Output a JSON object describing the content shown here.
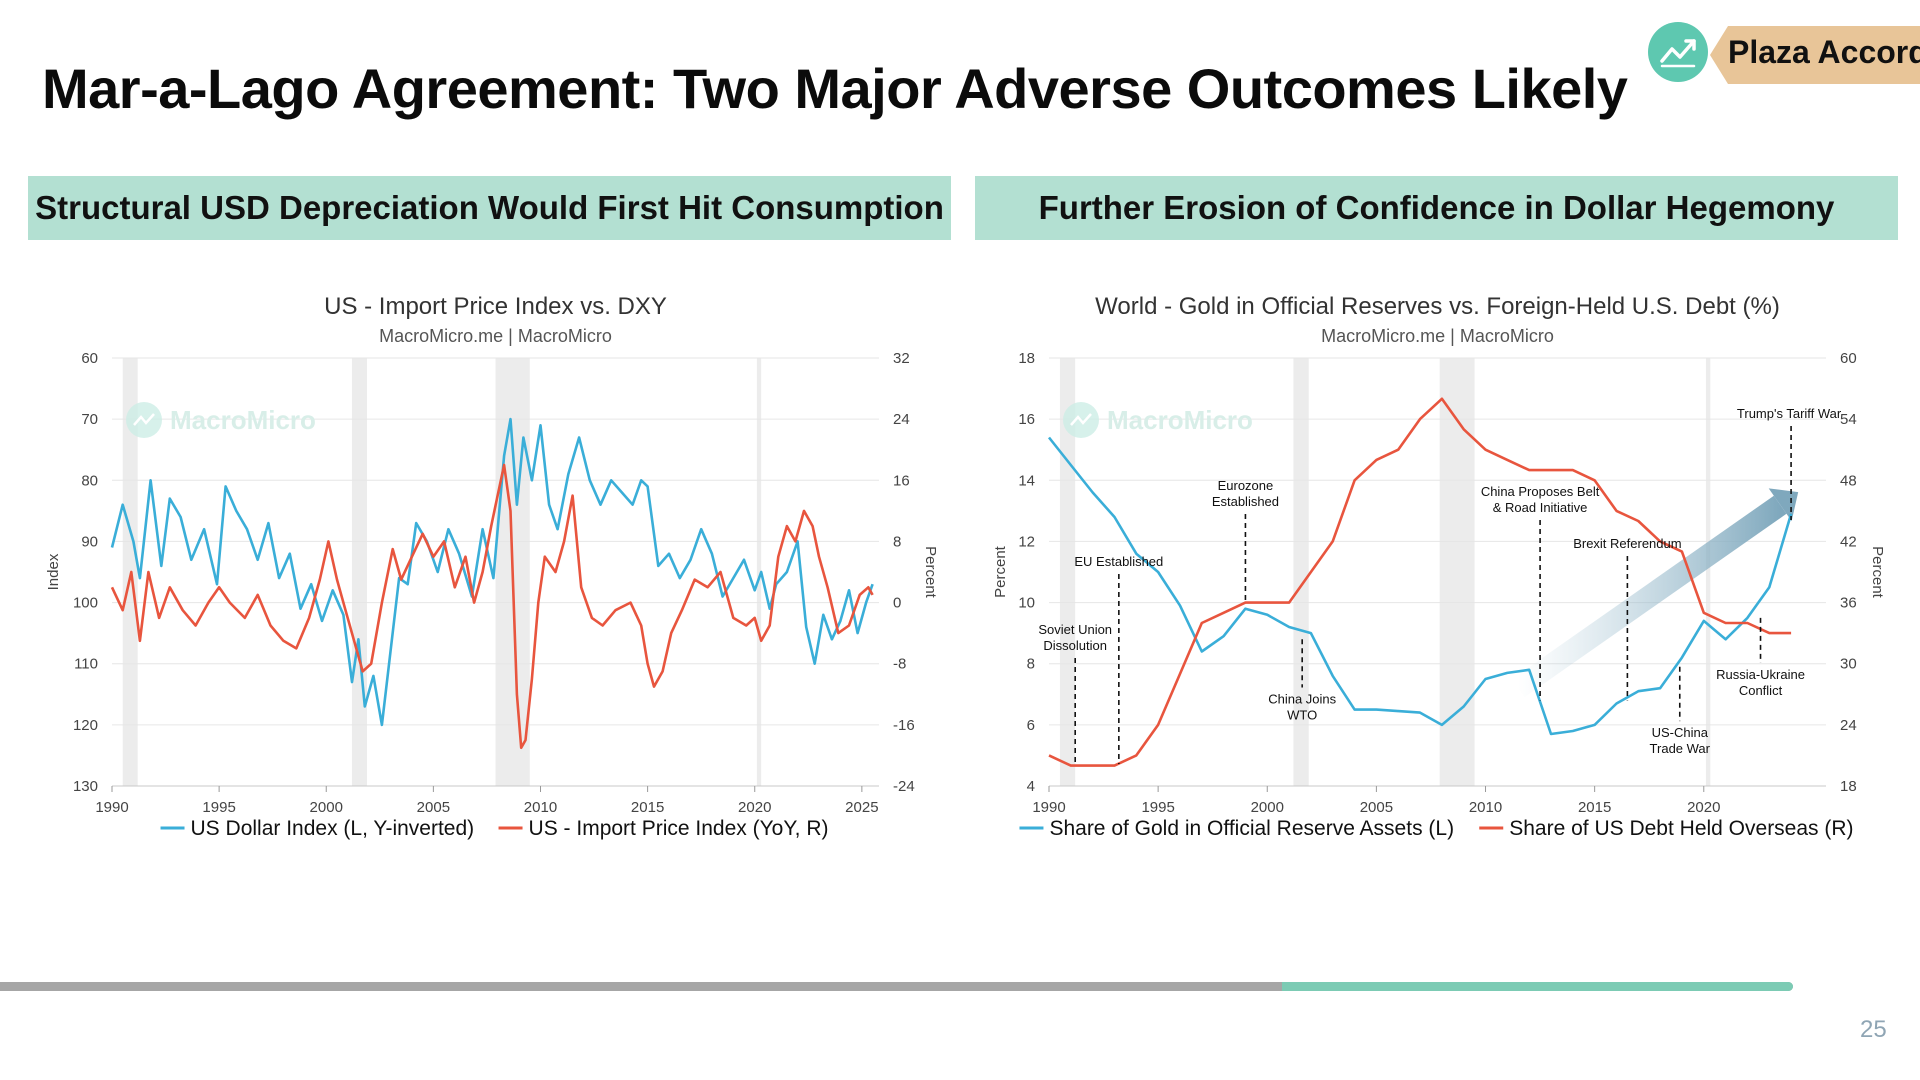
{
  "slide": {
    "title": "Mar-a-Lago Agreement: Two Major Adverse Outcomes Likely",
    "badge_text": "Plaza Accord",
    "page_number": "25",
    "progress": 0.9,
    "banner_left": "Structural USD Depreciation Would First Hit Consumption",
    "banner_right": "Further Erosion of Confidence in Dollar Hegemony"
  },
  "colors": {
    "blue": "#3aaed8",
    "red": "#e8553e",
    "banner": "#b3e0d2",
    "accent": "#7ccbb4",
    "badge": "#e8c598"
  },
  "chart_data": [
    {
      "type": "line",
      "title": "US - Import Price Index vs. DXY",
      "subtitle": "MacroMicro.me | MacroMicro",
      "watermark": "MacroMicro",
      "ylabel_left": "Index",
      "ylabel_right": "Percent",
      "ylim_left": [
        60,
        130
      ],
      "ylim_right": [
        -24,
        32
      ],
      "yticks_left": [
        60,
        70,
        80,
        90,
        100,
        110,
        120,
        130
      ],
      "yticks_right": [
        32,
        24,
        16,
        8,
        0,
        -8,
        -16,
        -24
      ],
      "xlim": [
        1990,
        2025.8
      ],
      "xticks": [
        1990,
        1995,
        2000,
        2005,
        2010,
        2015,
        2020,
        2025
      ],
      "recessions": [
        [
          1990.5,
          1991.2
        ],
        [
          2001.2,
          2001.9
        ],
        [
          2007.9,
          2009.5
        ],
        [
          2020.1,
          2020.3
        ]
      ],
      "series": [
        {
          "name": "US Dollar Index (L, Y-inverted)",
          "axis": "left",
          "color": "#3aaed8",
          "x": [
            1990,
            1990.5,
            1991,
            1991.3,
            1991.8,
            1992.3,
            1992.7,
            1993.2,
            1993.7,
            1994.3,
            1994.9,
            1995.3,
            1995.8,
            1996.3,
            1996.8,
            1997.3,
            1997.8,
            1998.3,
            1998.8,
            1999.3,
            1999.8,
            2000.3,
            2000.8,
            2001.2,
            2001.5,
            2001.8,
            2002.2,
            2002.6,
            2003.0,
            2003.4,
            2003.8,
            2004.2,
            2004.7,
            2005.2,
            2005.7,
            2006.2,
            2006.8,
            2007.3,
            2007.8,
            2008.3,
            2008.6,
            2008.9,
            2009.2,
            2009.6,
            2010.0,
            2010.4,
            2010.8,
            2011.3,
            2011.8,
            2012.3,
            2012.8,
            2013.3,
            2013.8,
            2014.3,
            2014.7,
            2015.0,
            2015.5,
            2016.0,
            2016.5,
            2017.0,
            2017.5,
            2018.0,
            2018.5,
            2019.0,
            2019.5,
            2020.0,
            2020.3,
            2020.7,
            2021.0,
            2021.5,
            2022.0,
            2022.4,
            2022.8,
            2023.2,
            2023.6,
            2024.0,
            2024.4,
            2024.8,
            2025.2,
            2025.5
          ],
          "values": [
            91,
            84,
            90,
            96,
            80,
            94,
            83,
            86,
            93,
            88,
            97,
            81,
            85,
            88,
            93,
            87,
            96,
            92,
            101,
            97,
            103,
            98,
            102,
            113,
            106,
            117,
            112,
            120,
            108,
            96,
            97,
            87,
            90,
            95,
            88,
            92,
            99,
            88,
            96,
            76,
            70,
            84,
            73,
            80,
            71,
            84,
            88,
            79,
            73,
            80,
            84,
            80,
            82,
            84,
            80,
            81,
            94,
            92,
            96,
            93,
            88,
            92,
            99,
            96,
            93,
            98,
            95,
            101,
            97,
            95,
            90,
            104,
            110,
            102,
            106,
            103,
            98,
            105,
            100,
            97
          ]
        },
        {
          "name": "US - Import Price Index (YoY, R)",
          "axis": "right",
          "color": "#e8553e",
          "x": [
            1990,
            1990.5,
            1990.9,
            1991.3,
            1991.7,
            1992.2,
            1992.7,
            1993.3,
            1993.9,
            1994.5,
            1995.0,
            1995.5,
            1996.2,
            1996.8,
            1997.4,
            1998.0,
            1998.6,
            1999.2,
            1999.7,
            2000.1,
            2000.5,
            2000.9,
            2001.3,
            2001.7,
            2002.1,
            2002.6,
            2003.1,
            2003.5,
            2004.0,
            2004.5,
            2005.0,
            2005.5,
            2006.0,
            2006.5,
            2006.9,
            2007.3,
            2007.7,
            2008.0,
            2008.3,
            2008.6,
            2008.9,
            2009.1,
            2009.3,
            2009.6,
            2009.9,
            2010.2,
            2010.7,
            2011.1,
            2011.5,
            2011.9,
            2012.4,
            2012.9,
            2013.5,
            2014.2,
            2014.7,
            2015.0,
            2015.3,
            2015.7,
            2016.1,
            2016.6,
            2017.2,
            2017.8,
            2018.4,
            2019.0,
            2019.6,
            2020.0,
            2020.3,
            2020.7,
            2021.1,
            2021.5,
            2021.9,
            2022.3,
            2022.7,
            2023.0,
            2023.4,
            2023.9,
            2024.4,
            2024.9,
            2025.3,
            2025.5
          ],
          "values": [
            2,
            -1,
            4,
            -5,
            4,
            -2,
            2,
            -1,
            -3,
            0,
            2,
            0,
            -2,
            1,
            -3,
            -5,
            -6,
            -2,
            3,
            8,
            3,
            -1,
            -5,
            -9,
            -8,
            0,
            7,
            3,
            6,
            9,
            6,
            8,
            2,
            6,
            0,
            4,
            10,
            14,
            18,
            12,
            -12,
            -19,
            -18,
            -10,
            0,
            6,
            4,
            8,
            14,
            2,
            -2,
            -3,
            -1,
            0,
            -3,
            -8,
            -11,
            -9,
            -4,
            -1,
            3,
            2,
            4,
            -2,
            -3,
            -2,
            -5,
            -3,
            6,
            10,
            8,
            12,
            10,
            6,
            2,
            -4,
            -3,
            1,
            2,
            1
          ]
        }
      ]
    },
    {
      "type": "line",
      "title": "World - Gold in Official Reserves vs. Foreign-Held U.S. Debt (%)",
      "subtitle": "MacroMicro.me | MacroMicro",
      "watermark": "MacroMicro",
      "ylabel_left": "Percent",
      "ylabel_right": "Percent",
      "ylim_left": [
        4,
        18
      ],
      "ylim_right": [
        18,
        60
      ],
      "yticks_left": [
        18,
        16,
        14,
        12,
        10,
        8,
        6,
        4
      ],
      "yticks_right": [
        60,
        54,
        48,
        42,
        36,
        30,
        24,
        18
      ],
      "xlim": [
        1990,
        2025.6
      ],
      "xticks": [
        1990,
        1995,
        2000,
        2005,
        2010,
        2015,
        2020
      ],
      "recessions": [
        [
          1990.5,
          1991.2
        ],
        [
          2001.2,
          2001.9
        ],
        [
          2007.9,
          2009.5
        ],
        [
          2020.1,
          2020.3
        ]
      ],
      "series": [
        {
          "name": "Share of Gold in Official Reserve Assets (L)",
          "axis": "left",
          "color": "#3aaed8",
          "x": [
            1990,
            1991,
            1992,
            1993,
            1994,
            1995,
            1996,
            1997,
            1998,
            1999,
            2000,
            2001,
            2002,
            2003,
            2004,
            2005,
            2006,
            2007,
            2008,
            2009,
            2010,
            2011,
            2012,
            2013,
            2014,
            2015,
            2016,
            2017,
            2018,
            2019,
            2020,
            2021,
            2022,
            2023,
            2024
          ],
          "values": [
            15.4,
            14.5,
            13.6,
            12.8,
            11.6,
            11.0,
            9.9,
            8.4,
            8.9,
            9.8,
            9.6,
            9.2,
            9.0,
            7.6,
            6.5,
            6.5,
            6.45,
            6.4,
            6.0,
            6.6,
            7.5,
            7.7,
            7.8,
            5.7,
            5.8,
            6.0,
            6.7,
            7.1,
            7.2,
            8.2,
            9.4,
            8.8,
            9.5,
            10.5,
            12.9
          ]
        },
        {
          "name": "Share of US Debt Held Overseas (R)",
          "axis": "right",
          "color": "#e8553e",
          "x": [
            1990,
            1991,
            1992,
            1993,
            1994,
            1995,
            1996,
            1997,
            1998,
            1999,
            2000,
            2001,
            2002,
            2003,
            2004,
            2005,
            2006,
            2007,
            2008,
            2009,
            2010,
            2011,
            2012,
            2013,
            2014,
            2015,
            2016,
            2017,
            2018,
            2019,
            2020,
            2021,
            2022,
            2023,
            2024
          ],
          "values": [
            21,
            20,
            20,
            20,
            21,
            24,
            29,
            34,
            35,
            36,
            36,
            36,
            39,
            42,
            48,
            50,
            51,
            54,
            56,
            53,
            51,
            50,
            49,
            49,
            49,
            48,
            45,
            44,
            42,
            41,
            35,
            34,
            34,
            33,
            33
          ]
        }
      ],
      "annotations": [
        {
          "text": [
            "Soviet Union",
            "Dissolution"
          ],
          "x": 1991.2,
          "side": "above"
        },
        {
          "text": [
            "EU Established"
          ],
          "x": 1993.2,
          "side": "above"
        },
        {
          "text": [
            "Eurozone",
            "Established"
          ],
          "x": 1999.0,
          "side": "above"
        },
        {
          "text": [
            "China Joins",
            "WTO"
          ],
          "x": 2001.6,
          "side": "below"
        },
        {
          "text": [
            "China Proposes Belt",
            "& Road Initiative"
          ],
          "x": 2012.5,
          "side": "above"
        },
        {
          "text": [
            "Brexit Referendum"
          ],
          "x": 2016.5,
          "side": "above"
        },
        {
          "text": [
            "US-China",
            "Trade War"
          ],
          "x": 2018.9,
          "side": "below"
        },
        {
          "text": [
            "Russia-Ukraine",
            "Conflict"
          ],
          "x": 2022.6,
          "side": "below"
        },
        {
          "text": [
            "Trump's Tariff War"
          ],
          "x": 2024.0,
          "side": "above"
        }
      ]
    }
  ]
}
